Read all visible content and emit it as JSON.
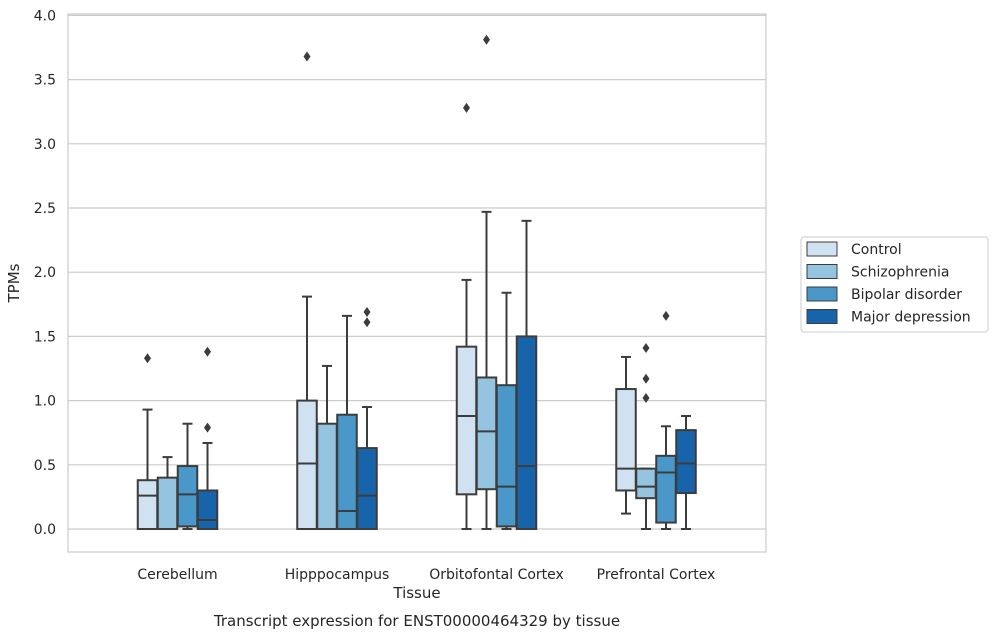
{
  "chart_data": {
    "type": "box",
    "xlabel": "Tissue",
    "ylabel": "TPMs",
    "caption": "Transcript expression for ENST00000464329 by tissue",
    "ylim": [
      -0.18,
      4.02
    ],
    "yticks": [
      "0.0",
      "0.5",
      "1.0",
      "1.5",
      "2.0",
      "2.5",
      "3.0",
      "3.5",
      "4.0"
    ],
    "grid": "horizontal",
    "legend_position": "right",
    "categories": [
      "Cerebellum",
      "Hipppocampus",
      "Orbitofontal Cortex",
      "Prefrontal Cortex"
    ],
    "series": [
      {
        "name": "Control",
        "color": "#d0e1f2",
        "boxes": [
          {
            "min": 0.0,
            "q1": 0.0,
            "median": 0.26,
            "q3": 0.38,
            "max": 0.93,
            "outliers": [
              1.33
            ]
          },
          {
            "min": 0.0,
            "q1": 0.0,
            "median": 0.51,
            "q3": 1.0,
            "max": 1.81,
            "outliers": [
              3.68
            ]
          },
          {
            "min": 0.0,
            "q1": 0.27,
            "median": 0.88,
            "q3": 1.42,
            "max": 1.94,
            "outliers": [
              3.28
            ]
          },
          {
            "min": 0.12,
            "q1": 0.3,
            "median": 0.47,
            "q3": 1.09,
            "max": 1.34,
            "outliers": []
          }
        ]
      },
      {
        "name": "Schizophrenia",
        "color": "#94c4df",
        "boxes": [
          {
            "min": 0.0,
            "q1": 0.0,
            "median": 0.0,
            "q3": 0.4,
            "max": 0.56,
            "outliers": []
          },
          {
            "min": 0.0,
            "q1": 0.0,
            "median": 0.0,
            "q3": 0.82,
            "max": 1.27,
            "outliers": []
          },
          {
            "min": 0.0,
            "q1": 0.31,
            "median": 0.76,
            "q3": 1.18,
            "max": 2.47,
            "outliers": [
              3.81
            ]
          },
          {
            "min": 0.0,
            "q1": 0.24,
            "median": 0.33,
            "q3": 0.47,
            "max": 0.47,
            "outliers": [
              1.02,
              1.17,
              1.41
            ]
          }
        ]
      },
      {
        "name": "Bipolar disorder",
        "color": "#4a98c9",
        "boxes": [
          {
            "min": 0.0,
            "q1": 0.02,
            "median": 0.27,
            "q3": 0.49,
            "max": 0.82,
            "outliers": []
          },
          {
            "min": 0.0,
            "q1": 0.0,
            "median": 0.14,
            "q3": 0.89,
            "max": 1.66,
            "outliers": []
          },
          {
            "min": 0.0,
            "q1": 0.02,
            "median": 0.33,
            "q3": 1.12,
            "max": 1.84,
            "outliers": []
          },
          {
            "min": 0.0,
            "q1": 0.05,
            "median": 0.44,
            "q3": 0.57,
            "max": 0.8,
            "outliers": [
              1.66
            ]
          }
        ]
      },
      {
        "name": "Major depression",
        "color": "#1764ab",
        "boxes": [
          {
            "min": 0.0,
            "q1": 0.0,
            "median": 0.07,
            "q3": 0.3,
            "max": 0.67,
            "outliers": [
              0.79,
              1.38
            ]
          },
          {
            "min": 0.0,
            "q1": 0.0,
            "median": 0.26,
            "q3": 0.63,
            "max": 0.95,
            "outliers": [
              1.61,
              1.69
            ]
          },
          {
            "min": 0.0,
            "q1": 0.0,
            "median": 0.49,
            "q3": 1.5,
            "max": 2.4,
            "outliers": []
          },
          {
            "min": 0.0,
            "q1": 0.28,
            "median": 0.51,
            "q3": 0.77,
            "max": 0.88,
            "outliers": []
          }
        ]
      }
    ]
  }
}
